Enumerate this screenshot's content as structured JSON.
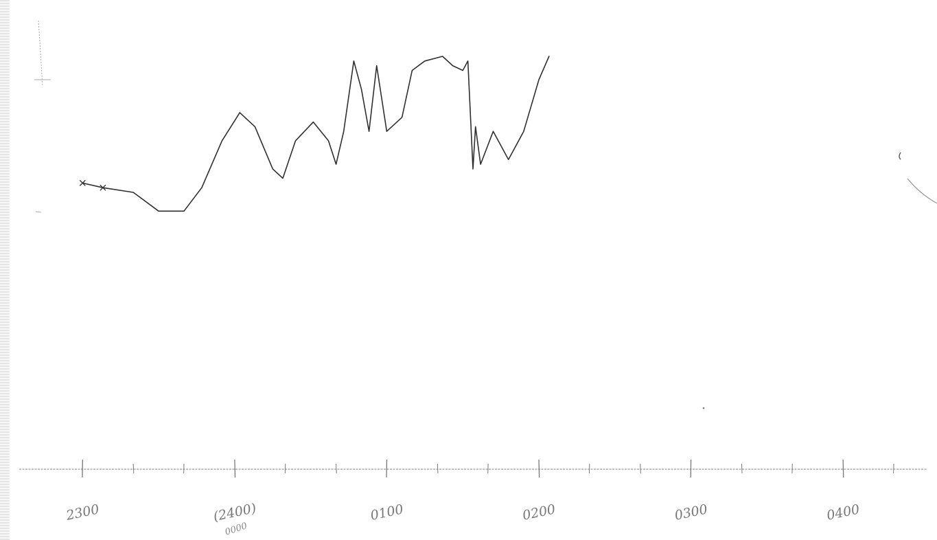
{
  "chart_data": {
    "type": "line",
    "title": "",
    "xlabel": "",
    "ylabel": "",
    "grid": false,
    "x_tick_labels": [
      {
        "t": 0,
        "label": "2300",
        "sub": ""
      },
      {
        "t": 60,
        "label": "(2400)",
        "sub": "0000"
      },
      {
        "t": 120,
        "label": "0100",
        "sub": ""
      },
      {
        "t": 180,
        "label": "0200",
        "sub": ""
      },
      {
        "t": 240,
        "label": "0300",
        "sub": ""
      },
      {
        "t": 300,
        "label": "0400",
        "sub": ""
      }
    ],
    "xlim": [
      -25,
      333
    ],
    "ylim": [
      0,
      10
    ],
    "minutes_per_minor_tick": 20,
    "series": [
      {
        "values": [
          [
            0,
            6.1
          ],
          [
            8,
            6.0
          ],
          [
            20,
            5.9
          ],
          [
            30,
            5.5
          ],
          [
            40,
            5.5
          ],
          [
            47,
            6.0
          ],
          [
            55,
            7.0
          ],
          [
            62,
            7.6
          ],
          [
            68,
            7.3
          ],
          [
            75,
            6.4
          ],
          [
            79,
            6.2
          ],
          [
            84,
            7.0
          ],
          [
            91,
            7.4
          ],
          [
            97,
            7.0
          ],
          [
            100,
            6.5
          ],
          [
            103,
            7.2
          ],
          [
            107,
            8.7
          ],
          [
            110,
            8.1
          ],
          [
            113,
            7.2
          ],
          [
            116,
            8.6
          ],
          [
            120,
            7.2
          ],
          [
            126,
            7.5
          ],
          [
            130,
            8.5
          ],
          [
            135,
            8.7
          ],
          [
            142,
            8.8
          ],
          [
            146,
            8.6
          ],
          [
            150,
            8.5
          ],
          [
            152,
            8.7
          ],
          [
            154,
            6.4
          ],
          [
            155,
            7.3
          ],
          [
            157,
            6.5
          ],
          [
            162,
            7.2
          ],
          [
            168,
            6.6
          ],
          [
            174,
            7.2
          ],
          [
            180,
            8.3
          ],
          [
            184,
            8.8
          ]
        ]
      }
    ],
    "ink_color": "#2f2f2f"
  }
}
